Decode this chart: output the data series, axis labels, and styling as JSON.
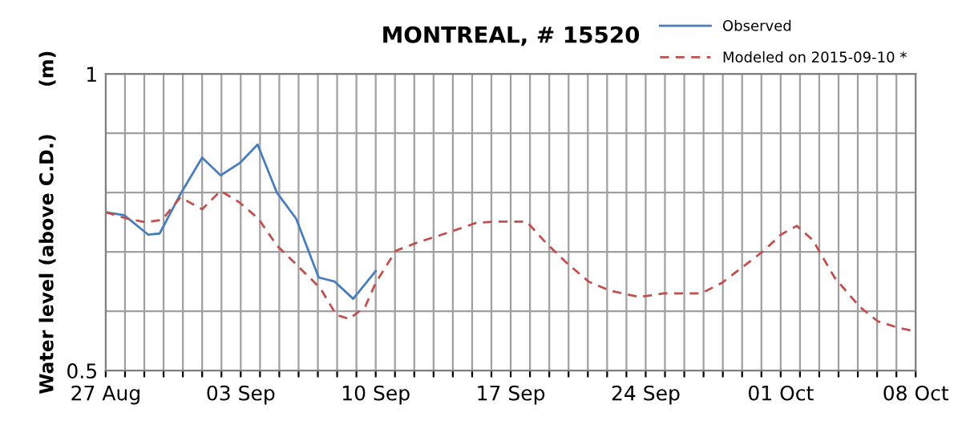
{
  "chart_data": {
    "type": "line",
    "title": "MONTREAL, # 15520",
    "ylabel": "Water level (above C.D.)       (m)",
    "xlim": [
      "2015-08-27",
      "2015-10-08"
    ],
    "xticks": [
      {
        "value": "2015-08-27",
        "label": "27 Aug"
      },
      {
        "value": "2015-08-28",
        "label": null
      },
      {
        "value": "2015-08-29",
        "label": null
      },
      {
        "value": "2015-08-30",
        "label": null
      },
      {
        "value": "2015-08-31",
        "label": null
      },
      {
        "value": "2015-09-01",
        "label": null
      },
      {
        "value": "2015-09-02",
        "label": null
      },
      {
        "value": "2015-09-03",
        "label": "03 Sep"
      },
      {
        "value": "2015-09-04",
        "label": null
      },
      {
        "value": "2015-09-05",
        "label": null
      },
      {
        "value": "2015-09-06",
        "label": null
      },
      {
        "value": "2015-09-07",
        "label": null
      },
      {
        "value": "2015-09-08",
        "label": null
      },
      {
        "value": "2015-09-09",
        "label": null
      },
      {
        "value": "2015-09-10",
        "label": "10 Sep"
      },
      {
        "value": "2015-09-11",
        "label": null
      },
      {
        "value": "2015-09-12",
        "label": null
      },
      {
        "value": "2015-09-13",
        "label": null
      },
      {
        "value": "2015-09-14",
        "label": null
      },
      {
        "value": "2015-09-15",
        "label": null
      },
      {
        "value": "2015-09-16",
        "label": null
      },
      {
        "value": "2015-09-17",
        "label": "17 Sep"
      },
      {
        "value": "2015-09-18",
        "label": null
      },
      {
        "value": "2015-09-19",
        "label": null
      },
      {
        "value": "2015-09-20",
        "label": null
      },
      {
        "value": "2015-09-21",
        "label": null
      },
      {
        "value": "2015-09-22",
        "label": null
      },
      {
        "value": "2015-09-23",
        "label": null
      },
      {
        "value": "2015-09-24",
        "label": "24 Sep"
      },
      {
        "value": "2015-09-25",
        "label": null
      },
      {
        "value": "2015-09-26",
        "label": null
      },
      {
        "value": "2015-09-27",
        "label": null
      },
      {
        "value": "2015-09-28",
        "label": null
      },
      {
        "value": "2015-09-29",
        "label": null
      },
      {
        "value": "2015-09-30",
        "label": null
      },
      {
        "value": "2015-10-01",
        "label": "01 Oct"
      },
      {
        "value": "2015-10-02",
        "label": null
      },
      {
        "value": "2015-10-03",
        "label": null
      },
      {
        "value": "2015-10-04",
        "label": null
      },
      {
        "value": "2015-10-05",
        "label": null
      },
      {
        "value": "2015-10-06",
        "label": null
      },
      {
        "value": "2015-10-07",
        "label": null
      },
      {
        "value": "2015-10-08",
        "label": "08 Oct"
      }
    ],
    "ylim": [
      0.5,
      1
    ],
    "yticks": [
      0.5,
      {
        "value": 0.6,
        "label": null
      },
      {
        "value": 0.7,
        "label": null
      },
      {
        "value": 0.8,
        "label": null
      },
      {
        "value": 0.9,
        "label": null
      },
      1
    ],
    "grid": true,
    "legend": "top right",
    "series": [
      {
        "name": "Observed",
        "color": "#4a7ebb",
        "line_style": "solid",
        "x": [
          "2015-08-27T00:00",
          "2015-08-27T23:00",
          "2015-08-29T05:00",
          "2015-08-29T19:00",
          "2015-08-30T22:00",
          "2015-09-01T00:00",
          "2015-09-01T23:00",
          "2015-09-02T23:00",
          "2015-09-03T21:00",
          "2015-09-04T21:00",
          "2015-09-05T21:00",
          "2015-09-07T01:00",
          "2015-09-07T21:00",
          "2015-09-08T20:00",
          "2015-09-10T00:00"
        ],
        "values": [
          0.767,
          0.762,
          0.729,
          0.731,
          0.8,
          0.859,
          0.829,
          0.85,
          0.881,
          0.8,
          0.756,
          0.657,
          0.65,
          0.621,
          0.668
        ]
      },
      {
        "name": "Modeled on 2015-09-10 *",
        "color": "#c0504d",
        "line_style": "dashed",
        "x": [
          "2015-08-27T00:00",
          "2015-08-28T03:00",
          "2015-08-29T02:00",
          "2015-08-29T22:00",
          "2015-08-30T21:00",
          "2015-09-01T00:00",
          "2015-09-01T23:00",
          "2015-09-02T23:00",
          "2015-09-03T22:00",
          "2015-09-04T21:00",
          "2015-09-06T00:00",
          "2015-09-07T03:00",
          "2015-09-07T23:00",
          "2015-09-08T15:00",
          "2015-09-09T11:00",
          "2015-09-10T00:00",
          "2015-09-11T01:00",
          "2015-09-12T02:00",
          "2015-09-13T19:00",
          "2015-09-15T05:00",
          "2015-09-16T04:00",
          "2015-09-17T20:00",
          "2015-09-18T20:00",
          "2015-09-19T23:00",
          "2015-09-21T01:00",
          "2015-09-22T03:00",
          "2015-09-23T16:00",
          "2015-09-24T22:00",
          "2015-09-26T21:00",
          "2015-09-27T23:00",
          "2015-09-29T01:00",
          "2015-09-30T03:00",
          "2015-10-01T00:00",
          "2015-10-01T20:00",
          "2015-10-02T16:00",
          "2015-10-03T19:00",
          "2015-10-05T02:00",
          "2015-10-06T01:00",
          "2015-10-07T03:00",
          "2015-10-08T00:00"
        ],
        "values": [
          0.767,
          0.756,
          0.75,
          0.754,
          0.792,
          0.772,
          0.803,
          0.783,
          0.756,
          0.711,
          0.675,
          0.639,
          0.594,
          0.587,
          0.608,
          0.648,
          0.702,
          0.715,
          0.733,
          0.749,
          0.751,
          0.751,
          0.715,
          0.68,
          0.65,
          0.635,
          0.624,
          0.63,
          0.63,
          0.648,
          0.675,
          0.702,
          0.729,
          0.744,
          0.72,
          0.657,
          0.608,
          0.583,
          0.572,
          0.566
        ]
      }
    ]
  }
}
